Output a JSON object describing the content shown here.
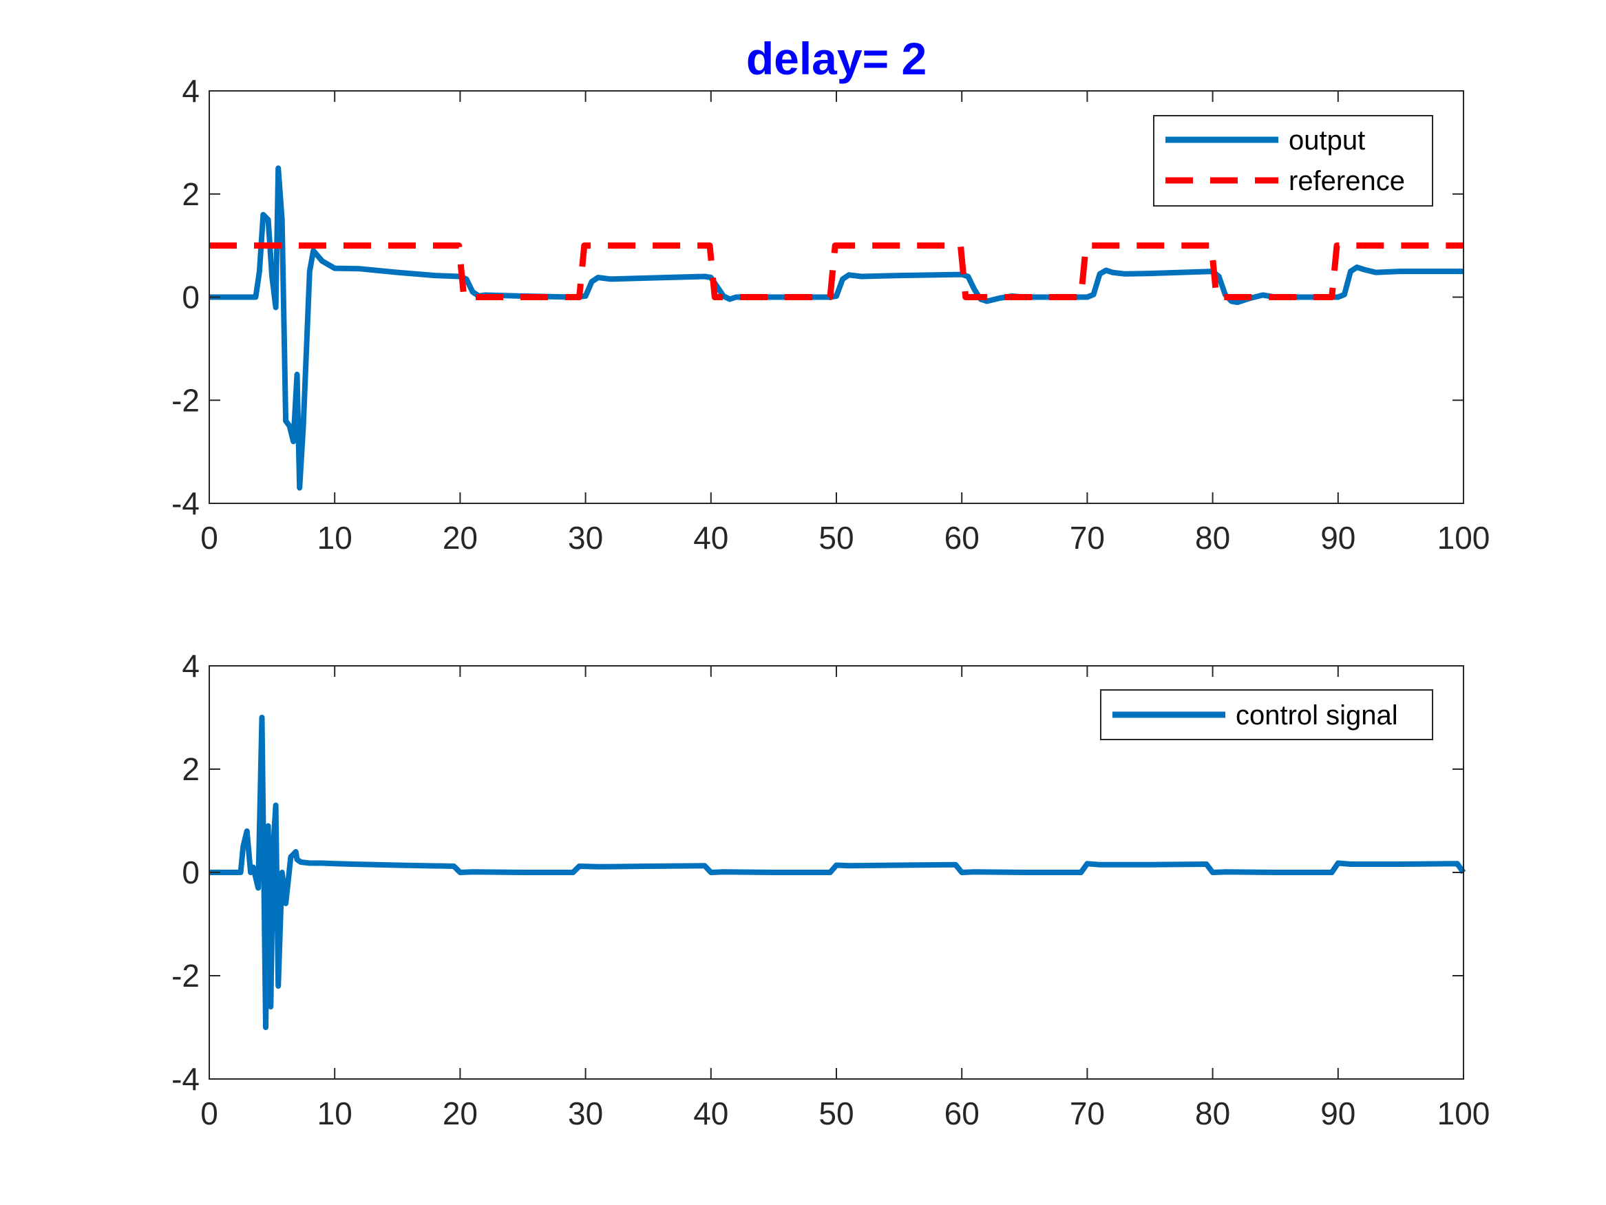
{
  "figure": {
    "title": "delay= 2"
  },
  "colors": {
    "output": "#0072bd",
    "reference": "#ff0000",
    "control": "#0072bd",
    "axes": "#262626"
  },
  "chart_data": [
    {
      "type": "line",
      "title": "delay= 2",
      "xlabel": "",
      "ylabel": "",
      "xlim": [
        0,
        100
      ],
      "ylim": [
        -4,
        4
      ],
      "xticks": [
        0,
        10,
        20,
        30,
        40,
        50,
        60,
        70,
        80,
        90,
        100
      ],
      "yticks": [
        -4,
        -2,
        0,
        2,
        4
      ],
      "grid": false,
      "legend_position": "top-right",
      "series": [
        {
          "name": "output",
          "style": "solid",
          "color": "#0072bd",
          "x": [
            0,
            3.7,
            4.0,
            4.3,
            4.7,
            5.0,
            5.3,
            5.5,
            5.8,
            6.1,
            6.4,
            6.7,
            7.0,
            7.2,
            7.5,
            8.0,
            8.3,
            9.0,
            10,
            12,
            15,
            18,
            20,
            20.5,
            21,
            21.5,
            22,
            25,
            29,
            30,
            30.5,
            31,
            32,
            35,
            39.5,
            40,
            40.5,
            41,
            41.5,
            42,
            45,
            49.5,
            50,
            50.5,
            51,
            52,
            55,
            60,
            60.5,
            61,
            61.5,
            62,
            63,
            64,
            65,
            70,
            70.5,
            71,
            71.5,
            72,
            73,
            75,
            80,
            80.5,
            81,
            81.5,
            82,
            83,
            84,
            85,
            90,
            90.5,
            91,
            91.5,
            92,
            93,
            95,
            100
          ],
          "y": [
            0,
            0,
            0.5,
            1.6,
            1.5,
            0.4,
            -0.2,
            2.5,
            1.5,
            -2.4,
            -2.5,
            -2.8,
            -1.5,
            -3.7,
            -2.5,
            0.5,
            0.9,
            0.7,
            0.56,
            0.55,
            0.48,
            0.42,
            0.4,
            0.35,
            0.1,
            0.02,
            0.04,
            0.02,
            0.0,
            0.02,
            0.3,
            0.38,
            0.35,
            0.37,
            0.4,
            0.38,
            0.2,
            0.02,
            -0.04,
            0.0,
            0.0,
            0.0,
            0.02,
            0.35,
            0.43,
            0.4,
            0.42,
            0.44,
            0.4,
            0.15,
            -0.04,
            -0.08,
            -0.02,
            0.02,
            0.0,
            0.0,
            0.05,
            0.45,
            0.52,
            0.48,
            0.45,
            0.46,
            0.5,
            0.4,
            0.05,
            -0.08,
            -0.1,
            -0.02,
            0.04,
            0.0,
            0.0,
            0.05,
            0.5,
            0.58,
            0.54,
            0.48,
            0.5,
            0.5
          ]
        },
        {
          "name": "reference",
          "style": "dashed",
          "color": "#ff0000",
          "x": [
            0,
            19.9,
            20.3,
            29.5,
            29.9,
            39.9,
            40.3,
            49.5,
            49.9,
            59.9,
            60.3,
            69.5,
            69.9,
            79.9,
            80.3,
            89.5,
            89.9,
            100
          ],
          "y": [
            1,
            1,
            0,
            0,
            1,
            1,
            0,
            0,
            1,
            1,
            0,
            0,
            1,
            1,
            0,
            0,
            1,
            1
          ]
        }
      ]
    },
    {
      "type": "line",
      "title": "",
      "xlabel": "",
      "ylabel": "",
      "xlim": [
        0,
        100
      ],
      "ylim": [
        -4,
        4
      ],
      "xticks": [
        0,
        10,
        20,
        30,
        40,
        50,
        60,
        70,
        80,
        90,
        100
      ],
      "yticks": [
        -4,
        -2,
        0,
        2,
        4
      ],
      "grid": false,
      "legend_position": "top-right",
      "series": [
        {
          "name": "control signal",
          "style": "solid",
          "color": "#0072bd",
          "x": [
            0,
            2.5,
            2.7,
            3.0,
            3.3,
            3.5,
            3.9,
            4.2,
            4.5,
            4.7,
            4.9,
            5.1,
            5.3,
            5.5,
            5.8,
            6.1,
            6.5,
            6.7,
            6.9,
            7.0,
            7.3,
            8.0,
            9.0,
            10,
            15,
            19.5,
            20,
            21,
            25,
            29,
            29.5,
            31,
            35,
            39.5,
            40,
            41,
            45,
            49.5,
            50,
            51,
            55,
            59.5,
            60,
            61,
            65,
            69.5,
            70,
            71,
            75,
            79.5,
            80,
            81,
            85,
            89.5,
            90,
            91,
            95,
            99.5,
            100
          ],
          "y": [
            0,
            0,
            0.5,
            0.8,
            0.0,
            0.1,
            -0.3,
            3.0,
            -3.0,
            0.9,
            -2.6,
            0.5,
            1.3,
            -2.2,
            0.0,
            -0.6,
            0.3,
            0.35,
            0.4,
            0.25,
            0.2,
            0.18,
            0.18,
            0.17,
            0.14,
            0.12,
            0.0,
            0.01,
            0.0,
            0.0,
            0.12,
            0.11,
            0.12,
            0.13,
            0.0,
            0.01,
            0.0,
            0.0,
            0.14,
            0.13,
            0.14,
            0.15,
            0.0,
            0.01,
            0.0,
            0.0,
            0.17,
            0.15,
            0.15,
            0.16,
            0.0,
            0.01,
            0.0,
            0.0,
            0.18,
            0.16,
            0.16,
            0.17,
            0.0
          ]
        }
      ]
    }
  ]
}
